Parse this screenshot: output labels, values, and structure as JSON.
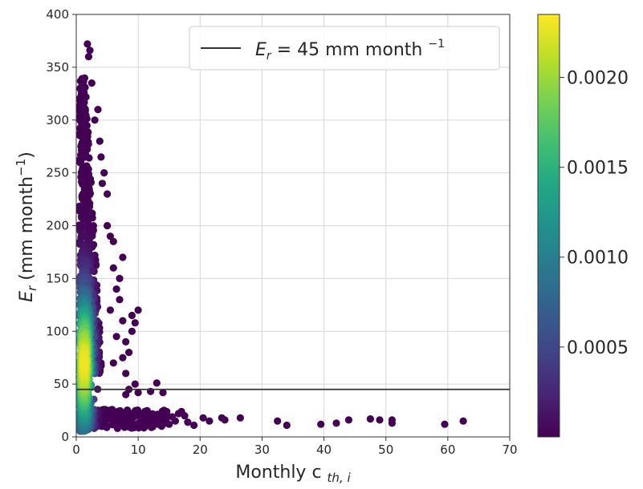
{
  "chart_data": {
    "type": "scatter",
    "title": "",
    "xlabel": "Monthly c",
    "xlabel_sub": "th, i",
    "ylabel": "E",
    "ylabel_sub": "r",
    "ylabel_units": "(mm month",
    "ylabel_units_sup": "−1",
    "ylabel_units_close": ")",
    "xlim": [
      0,
      70
    ],
    "ylim": [
      0,
      400
    ],
    "x_ticks": [
      0,
      10,
      20,
      30,
      40,
      50,
      60,
      70
    ],
    "y_ticks": [
      0,
      50,
      100,
      150,
      200,
      250,
      300,
      350,
      400
    ],
    "grid": true,
    "colormap": "viridis",
    "colorbar": {
      "min": 0,
      "max": 0.00235,
      "ticks": [
        {
          "value": 0.0005,
          "label": "0.0005"
        },
        {
          "value": 0.001,
          "label": "0.0010"
        },
        {
          "value": 0.0015,
          "label": "0.0015"
        },
        {
          "value": 0.002,
          "label": "0.0020"
        }
      ]
    },
    "reference_line": {
      "y": 45,
      "color": "#333333",
      "legend_prefix": "E",
      "legend_sub": "r",
      "legend_text": " = 45 mm month ",
      "legend_sup": "−1"
    },
    "legend_position": "top-right",
    "outliers": [
      [
        62.5,
        15
      ],
      [
        59.5,
        12
      ],
      [
        51,
        16
      ],
      [
        51,
        13
      ],
      [
        49,
        16
      ],
      [
        47.5,
        17
      ],
      [
        44,
        16
      ],
      [
        42,
        13
      ],
      [
        39.5,
        12
      ],
      [
        34,
        11
      ],
      [
        32.5,
        15
      ],
      [
        26.5,
        18
      ],
      [
        24,
        16
      ],
      [
        23.5,
        18
      ],
      [
        21.5,
        15
      ],
      [
        20.5,
        18
      ],
      [
        19,
        11
      ],
      [
        18,
        14
      ],
      [
        17.5,
        20
      ],
      [
        17,
        24
      ],
      [
        16.5,
        22
      ],
      [
        16,
        15
      ],
      [
        15.5,
        19
      ],
      [
        15,
        12
      ],
      [
        14.5,
        17
      ],
      [
        14,
        14
      ],
      [
        13.5,
        18
      ],
      [
        13,
        13
      ],
      [
        12.5,
        16
      ],
      [
        12,
        12
      ],
      [
        11.5,
        15
      ],
      [
        11,
        18
      ],
      [
        10.5,
        13
      ],
      [
        13,
        51
      ],
      [
        14,
        42
      ],
      [
        12,
        43
      ],
      [
        10,
        42
      ],
      [
        9.5,
        50
      ],
      [
        8.5,
        45
      ],
      [
        8,
        40
      ],
      [
        10,
        120
      ],
      [
        9,
        115
      ],
      [
        8,
        90
      ],
      [
        7.5,
        110
      ],
      [
        9,
        100
      ],
      [
        8.5,
        80
      ],
      [
        7,
        130
      ],
      [
        6.5,
        140
      ],
      [
        7,
        150
      ],
      [
        6,
        185
      ],
      [
        7.5,
        170
      ],
      [
        5.5,
        190
      ],
      [
        5,
        230
      ],
      [
        4.5,
        250
      ],
      [
        3,
        300
      ],
      [
        2.5,
        335
      ],
      [
        2,
        360
      ],
      [
        1.8,
        372
      ],
      [
        2.2,
        366
      ],
      [
        3.5,
        310
      ],
      [
        6,
        160
      ],
      [
        6.5,
        95
      ],
      [
        7.5,
        75
      ],
      [
        8,
        60
      ],
      [
        5.5,
        120
      ],
      [
        6,
        70
      ],
      [
        4,
        265
      ],
      [
        3.8,
        280
      ],
      [
        4.2,
        240
      ],
      [
        5,
        200
      ],
      [
        9.5,
        108
      ]
    ]
  }
}
